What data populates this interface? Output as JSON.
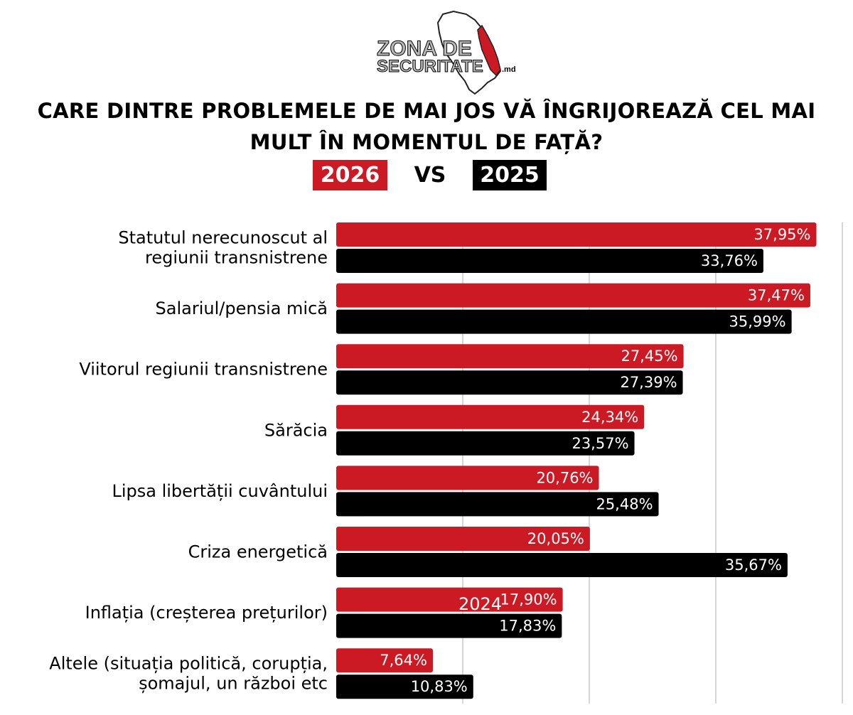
{
  "logo": {
    "line1": "ZONA DE",
    "line2": "SECURITATE",
    "suffix": ".md"
  },
  "title": "CARE DINTRE PROBLEMELE DE MAI JOS VĂ ÎNGRIJOREAZĂ CEL MAI MULT ÎN MOMENTUL DE FAȚĂ?",
  "legend": {
    "first": "2026",
    "vs": "VS",
    "second": "2025"
  },
  "colors": {
    "series_2026": "#cc1a24",
    "series_2025": "#000000",
    "grid": "#c8c8c8"
  },
  "stray_text": "2024",
  "chart_data": {
    "type": "bar",
    "orientation": "horizontal",
    "categories": [
      [
        "Statutul nerecunoscut al",
        "regiunii transnistrene"
      ],
      [
        "Salariul/pensia mică"
      ],
      [
        "Viitorul regiunii transnistrene"
      ],
      [
        "Sărăcia"
      ],
      [
        "Lipsa libertății cuvântului"
      ],
      [
        "Criza energetică"
      ],
      [
        "Inflația (creșterea prețurilor)"
      ],
      [
        "Altele (situația politică, corupția,",
        "șomajul, un război etc"
      ]
    ],
    "series": [
      {
        "name": "2026",
        "values": [
          37.95,
          37.47,
          27.45,
          24.34,
          20.76,
          20.05,
          17.9,
          7.64
        ],
        "labels": [
          "37,95%",
          "37,47%",
          "27,45%",
          "24,34%",
          "20,76%",
          "20,05%",
          "17,90%",
          "7,64%"
        ]
      },
      {
        "name": "2025",
        "values": [
          33.76,
          35.99,
          27.39,
          23.57,
          25.48,
          35.67,
          17.83,
          10.83
        ],
        "labels": [
          "33,76%",
          "35,99%",
          "27,39%",
          "23,57%",
          "25,48%",
          "35,67%",
          "17,83%",
          "10,83%"
        ]
      }
    ],
    "xlim": [
      0,
      40
    ],
    "grid": true,
    "gridlines_at": [
      10,
      20,
      30,
      40
    ]
  }
}
